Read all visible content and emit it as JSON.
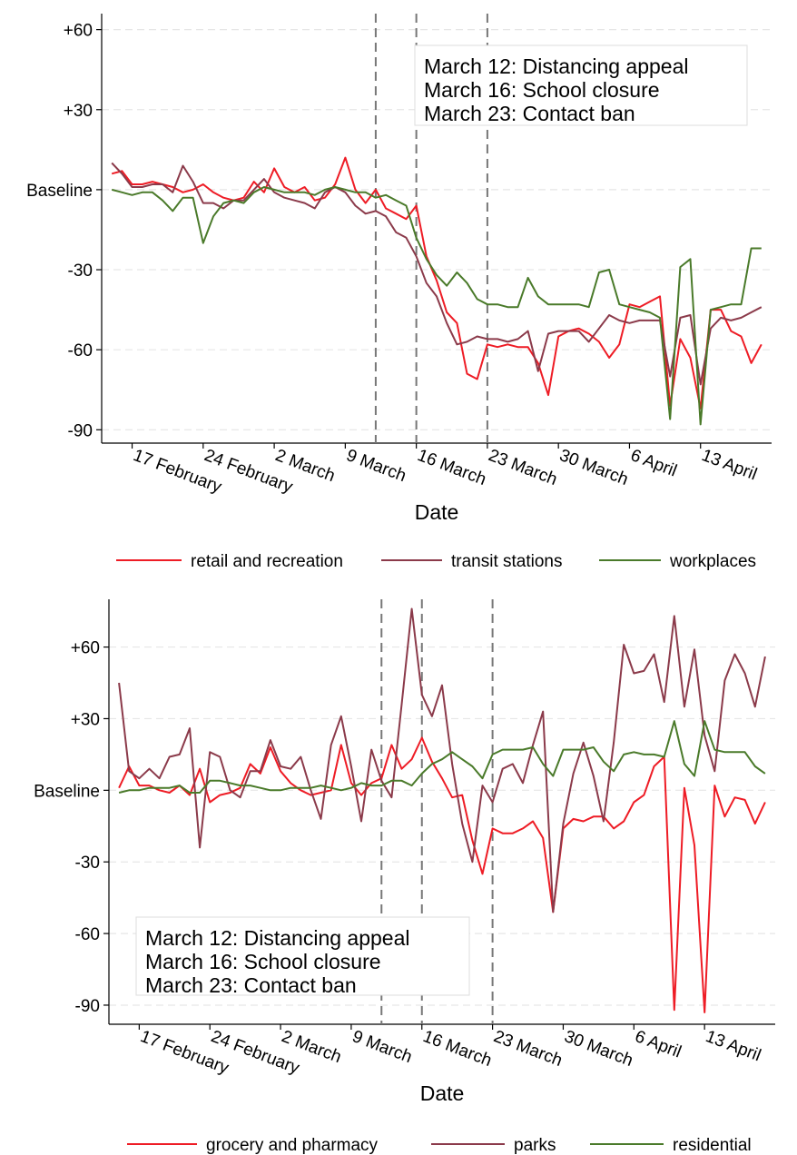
{
  "chart_data": [
    {
      "type": "line",
      "x_label": "Date",
      "x": [
        46,
        47,
        48,
        49,
        50,
        51,
        52,
        53,
        54,
        55,
        56,
        57,
        58,
        59,
        60,
        61,
        62,
        63,
        64,
        65,
        66,
        67,
        68,
        69,
        70,
        71,
        72,
        73,
        74,
        75,
        76,
        77,
        78,
        79,
        80,
        81,
        82,
        83,
        84,
        85,
        86,
        87,
        88,
        89,
        90,
        91,
        92,
        93,
        94,
        95,
        96,
        97,
        98,
        99,
        100,
        101,
        102,
        103,
        104,
        105,
        106,
        107,
        108,
        109,
        110
      ],
      "xlim": [
        45,
        111
      ],
      "xticks": [
        {
          "value": 48,
          "label": "17 February"
        },
        {
          "value": 55,
          "label": "24 February"
        },
        {
          "value": 62,
          "label": "2 March"
        },
        {
          "value": 69,
          "label": "9 March"
        },
        {
          "value": 76,
          "label": "16 March"
        },
        {
          "value": 83,
          "label": "23 March"
        },
        {
          "value": 90,
          "label": "30 March"
        },
        {
          "value": 97,
          "label": "6 April"
        },
        {
          "value": 104,
          "label": "13 April"
        }
      ],
      "ylim": [
        -95,
        66
      ],
      "yticks": [
        {
          "value": 60,
          "label": "+60"
        },
        {
          "value": 30,
          "label": "+30"
        },
        {
          "value": 0,
          "label": "Baseline"
        },
        -30,
        -60,
        -90
      ],
      "grid": true,
      "legend": "bottom",
      "vlines": [
        72,
        76,
        83
      ],
      "annotations": [
        "March 12: Distancing appeal",
        "March 16: School closure",
        "March 23: Contact ban"
      ],
      "series": [
        {
          "name": "retail and recreation",
          "color": "#ee1c25",
          "values": [
            6,
            7,
            2,
            2,
            3,
            2,
            1,
            -1,
            0,
            2,
            -1,
            -3,
            -4,
            -3,
            3,
            -1,
            8,
            1,
            -1,
            1,
            -4,
            -3,
            2,
            12,
            0,
            -5,
            0,
            -7,
            -9,
            -11,
            -6,
            -25,
            -34,
            -46,
            -50,
            -69,
            -71,
            -58,
            -59,
            -58,
            -59,
            -59,
            -65,
            -77,
            -55,
            -53,
            -52,
            -54,
            -57,
            -63,
            -58,
            -43,
            -44,
            -42,
            -40,
            -81,
            -56,
            -63,
            -82,
            -45,
            -45,
            -53,
            -55,
            -65,
            -58
          ]
        },
        {
          "name": "transit stations",
          "color": "#8b3a4a",
          "values": [
            10,
            6,
            1,
            1,
            2,
            2,
            -1,
            9,
            3,
            -5,
            -5,
            -7,
            -4,
            -4,
            0,
            4,
            -1,
            -3,
            -4,
            -5,
            -7,
            -1,
            1,
            -1,
            -6,
            -9,
            -8,
            -10,
            -16,
            -18,
            -25,
            -35,
            -40,
            -50,
            -58,
            -57,
            -55,
            -56,
            -56,
            -57,
            -56,
            -53,
            -68,
            -54,
            -53,
            -53,
            -53,
            -57,
            -52,
            -47,
            -49,
            -50,
            -49,
            -49,
            -49,
            -70,
            -48,
            -47,
            -73,
            -52,
            -48,
            -49,
            -48,
            -46,
            -44
          ]
        },
        {
          "name": "workplaces",
          "color": "#4a7a2a",
          "values": [
            0,
            -1,
            -2,
            -1,
            -1,
            -4,
            -8,
            -3,
            -3,
            -20,
            -10,
            -5,
            -4,
            -5,
            -1,
            1,
            0,
            -1,
            -1,
            -1,
            -2,
            0,
            1,
            0,
            -1,
            -1,
            -3,
            -2,
            -4,
            -6,
            -18,
            -26,
            -32,
            -36,
            -31,
            -35,
            -41,
            -43,
            -43,
            -44,
            -44,
            -33,
            -40,
            -43,
            -43,
            -43,
            -43,
            -44,
            -31,
            -30,
            -43,
            -44,
            -45,
            -46,
            -48,
            -86,
            -29,
            -26,
            -88,
            -45,
            -44,
            -43,
            -43,
            -22,
            -22
          ]
        }
      ]
    },
    {
      "type": "line",
      "x_label": "Date",
      "x": [
        46,
        47,
        48,
        49,
        50,
        51,
        52,
        53,
        54,
        55,
        56,
        57,
        58,
        59,
        60,
        61,
        62,
        63,
        64,
        65,
        66,
        67,
        68,
        69,
        70,
        71,
        72,
        73,
        74,
        75,
        76,
        77,
        78,
        79,
        80,
        81,
        82,
        83,
        84,
        85,
        86,
        87,
        88,
        89,
        90,
        91,
        92,
        93,
        94,
        95,
        96,
        97,
        98,
        99,
        100,
        101,
        102,
        103,
        104,
        105,
        106,
        107,
        108,
        109,
        110
      ],
      "xlim": [
        45,
        111
      ],
      "xticks": [
        {
          "value": 48,
          "label": "17 February"
        },
        {
          "value": 55,
          "label": "24 February"
        },
        {
          "value": 62,
          "label": "2 March"
        },
        {
          "value": 69,
          "label": "9 March"
        },
        {
          "value": 76,
          "label": "16 March"
        },
        {
          "value": 83,
          "label": "23 March"
        },
        {
          "value": 90,
          "label": "30 March"
        },
        {
          "value": 97,
          "label": "6 April"
        },
        {
          "value": 104,
          "label": "13 April"
        }
      ],
      "ylim": [
        -98,
        80
      ],
      "yticks": [
        {
          "value": 60,
          "label": "+60"
        },
        {
          "value": 30,
          "label": "+30"
        },
        {
          "value": 0,
          "label": "Baseline"
        },
        -30,
        -60,
        -90
      ],
      "grid": true,
      "legend": "bottom",
      "vlines": [
        72,
        76,
        83
      ],
      "annotations": [
        "March 12: Distancing appeal",
        "March 16: School closure",
        "March 23: Contact ban"
      ],
      "series": [
        {
          "name": "grocery and pharmacy",
          "color": "#ee1c25",
          "values": [
            1,
            10,
            2,
            2,
            0,
            -1,
            2,
            -2,
            9,
            -5,
            -2,
            -1,
            1,
            11,
            7,
            18,
            8,
            3,
            0,
            -2,
            -1,
            0,
            19,
            3,
            -2,
            3,
            5,
            19,
            9,
            13,
            22,
            12,
            5,
            -3,
            -2,
            -21,
            -35,
            -16,
            -18,
            -18,
            -16,
            -13,
            -20,
            -51,
            -16,
            -12,
            -13,
            -11,
            -11,
            -16,
            -13,
            -5,
            -2,
            10,
            14,
            -92,
            1,
            -23,
            -93,
            2,
            -11,
            -3,
            -4,
            -14,
            -5
          ]
        },
        {
          "name": "parks",
          "color": "#8b3a4a",
          "values": [
            45,
            8,
            5,
            9,
            5,
            14,
            15,
            26,
            -24,
            16,
            14,
            0,
            -3,
            8,
            8,
            21,
            10,
            9,
            14,
            0,
            -12,
            19,
            31,
            10,
            -13,
            17,
            4,
            -3,
            36,
            76,
            40,
            31,
            44,
            11,
            -14,
            -30,
            2,
            -5,
            9,
            11,
            3,
            19,
            33,
            -51,
            -14,
            7,
            20,
            6,
            -13,
            20,
            61,
            49,
            50,
            57,
            37,
            73,
            35,
            59,
            23,
            8,
            46,
            57,
            49,
            35,
            56
          ]
        },
        {
          "name": "residential",
          "color": "#4a7a2a",
          "values": [
            -1,
            0,
            0,
            1,
            1,
            1,
            2,
            -1,
            -1,
            4,
            4,
            3,
            2,
            2,
            1,
            0,
            0,
            1,
            1,
            1,
            2,
            1,
            0,
            1,
            3,
            2,
            2,
            4,
            4,
            2,
            7,
            11,
            13,
            16,
            13,
            10,
            5,
            15,
            17,
            17,
            17,
            18,
            11,
            6,
            17,
            17,
            17,
            18,
            12,
            8,
            15,
            16,
            15,
            15,
            14,
            29,
            11,
            6,
            29,
            17,
            16,
            16,
            16,
            10,
            7
          ]
        }
      ]
    }
  ]
}
